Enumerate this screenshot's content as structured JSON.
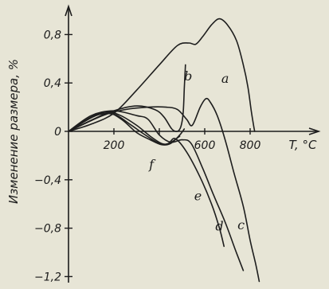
{
  "chart_data": {
    "type": "line",
    "xlabel": "T, °C",
    "ylabel": "Изменение размера, %",
    "xlim": [
      0,
      880
    ],
    "ylim": [
      -1.25,
      0.98
    ],
    "x_ticks": [
      200,
      400,
      600,
      800
    ],
    "x_tick_labels": [
      "200",
      "",
      "600",
      "800"
    ],
    "y_ticks": [
      0.8,
      0.4,
      0,
      -0.4,
      -0.8,
      -1.2
    ],
    "y_tick_labels": [
      "0,8",
      "0,4",
      "0",
      "−0,4",
      "−0,8",
      "−1,2"
    ],
    "grid": false,
    "series": [
      {
        "name": "a",
        "label_at": [
          690,
          0.4
        ],
        "points": [
          [
            0,
            0
          ],
          [
            100,
            0.06
          ],
          [
            200,
            0.15
          ],
          [
            300,
            0.34
          ],
          [
            400,
            0.55
          ],
          [
            480,
            0.71
          ],
          [
            530,
            0.73
          ],
          [
            560,
            0.72
          ],
          [
            590,
            0.78
          ],
          [
            630,
            0.88
          ],
          [
            665,
            0.93
          ],
          [
            700,
            0.88
          ],
          [
            740,
            0.75
          ],
          [
            770,
            0.55
          ],
          [
            790,
            0.37
          ],
          [
            805,
            0.17
          ],
          [
            815,
            0.05
          ],
          [
            820,
            0.0
          ]
        ]
      },
      {
        "name": "b",
        "label_at": [
          527,
          0.42
        ],
        "points": [
          [
            0,
            0
          ],
          [
            100,
            0.09
          ],
          [
            200,
            0.17
          ],
          [
            300,
            0.21
          ],
          [
            380,
            0.18
          ],
          [
            420,
            0.12
          ],
          [
            455,
            0.02
          ],
          [
            480,
            0.0
          ],
          [
            495,
            0.04
          ],
          [
            505,
            0.15
          ],
          [
            510,
            0.35
          ],
          [
            515,
            0.55
          ]
        ]
      },
      {
        "name": "c",
        "label_at": [
          760,
          -0.81
        ],
        "points": [
          [
            0,
            0
          ],
          [
            150,
            0.13
          ],
          [
            250,
            0.18
          ],
          [
            350,
            0.2
          ],
          [
            430,
            0.2
          ],
          [
            480,
            0.18
          ],
          [
            520,
            0.1
          ],
          [
            545,
            0.05
          ],
          [
            580,
            0.2
          ],
          [
            605,
            0.27
          ],
          [
            625,
            0.24
          ],
          [
            655,
            0.13
          ],
          [
            690,
            -0.07
          ],
          [
            730,
            -0.35
          ],
          [
            770,
            -0.62
          ],
          [
            800,
            -0.9
          ],
          [
            825,
            -1.1
          ],
          [
            840,
            -1.24
          ]
        ]
      },
      {
        "name": "d",
        "label_at": [
          665,
          -0.82
        ],
        "points": [
          [
            0,
            0
          ],
          [
            100,
            0.13
          ],
          [
            200,
            0.17
          ],
          [
            300,
            0.13
          ],
          [
            350,
            0.1
          ],
          [
            400,
            -0.03
          ],
          [
            450,
            -0.09
          ],
          [
            500,
            -0.07
          ],
          [
            540,
            -0.1
          ],
          [
            590,
            -0.3
          ],
          [
            640,
            -0.53
          ],
          [
            690,
            -0.75
          ],
          [
            735,
            -0.98
          ],
          [
            770,
            -1.15
          ]
        ]
      },
      {
        "name": "e",
        "label_at": [
          570,
          -0.57
        ],
        "points": [
          [
            0,
            0
          ],
          [
            100,
            0.12
          ],
          [
            170,
            0.16
          ],
          [
            230,
            0.13
          ],
          [
            300,
            0.05
          ],
          [
            360,
            -0.04
          ],
          [
            410,
            -0.1
          ],
          [
            440,
            -0.1
          ],
          [
            470,
            -0.06
          ],
          [
            520,
            -0.17
          ],
          [
            580,
            -0.38
          ],
          [
            630,
            -0.6
          ],
          [
            665,
            -0.8
          ],
          [
            685,
            -0.95
          ]
        ]
      },
      {
        "name": "f",
        "label_at": [
          365,
          -0.31
        ],
        "points": [
          [
            0,
            0
          ],
          [
            120,
            0.11
          ],
          [
            180,
            0.15
          ],
          [
            240,
            0.09
          ],
          [
            300,
            -0.01
          ],
          [
            360,
            -0.07
          ],
          [
            410,
            -0.11
          ],
          [
            450,
            -0.1
          ],
          [
            490,
            -0.03
          ],
          [
            510,
            0.02
          ]
        ]
      },
      {
        "name": "",
        "points": [
          [
            0,
            0
          ],
          [
            120,
            0.13
          ],
          [
            200,
            0.14
          ],
          [
            270,
            0.06
          ],
          [
            330,
            -0.02
          ],
          [
            390,
            -0.09
          ],
          [
            430,
            -0.11
          ],
          [
            460,
            -0.08
          ],
          [
            490,
            -0.04
          ]
        ]
      }
    ]
  }
}
